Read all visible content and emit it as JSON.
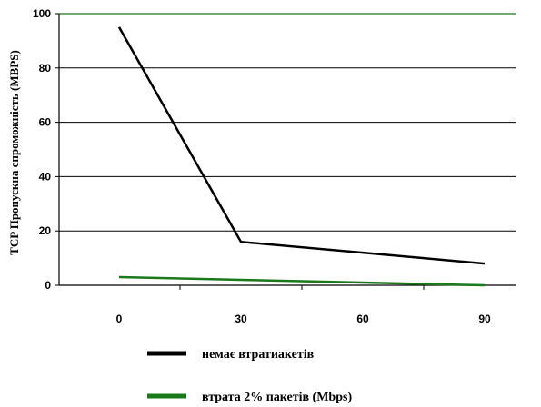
{
  "chart_data": {
    "type": "line",
    "x": [
      0,
      30,
      60,
      90
    ],
    "x_tick_labels": [
      "0",
      "30",
      "60",
      "90"
    ],
    "y_tick_labels": [
      "0",
      "20",
      "40",
      "60",
      "80",
      "100"
    ],
    "ylim": [
      0,
      100
    ],
    "ylabel": "TCP Пропускна спроможність (MBPS)",
    "xlabel": "",
    "title": "",
    "grid": "horizontal",
    "legend_position": "bottom",
    "series": [
      {
        "name": "немає втратиакетів",
        "color": "#000000",
        "values": [
          95,
          16,
          12,
          8
        ]
      },
      {
        "name": "втрата 2% пакетів (Mbps)",
        "color": "#1a7a1a",
        "values": [
          3,
          2,
          1,
          0
        ]
      }
    ],
    "plot_border_color": "#1a7a1a"
  }
}
